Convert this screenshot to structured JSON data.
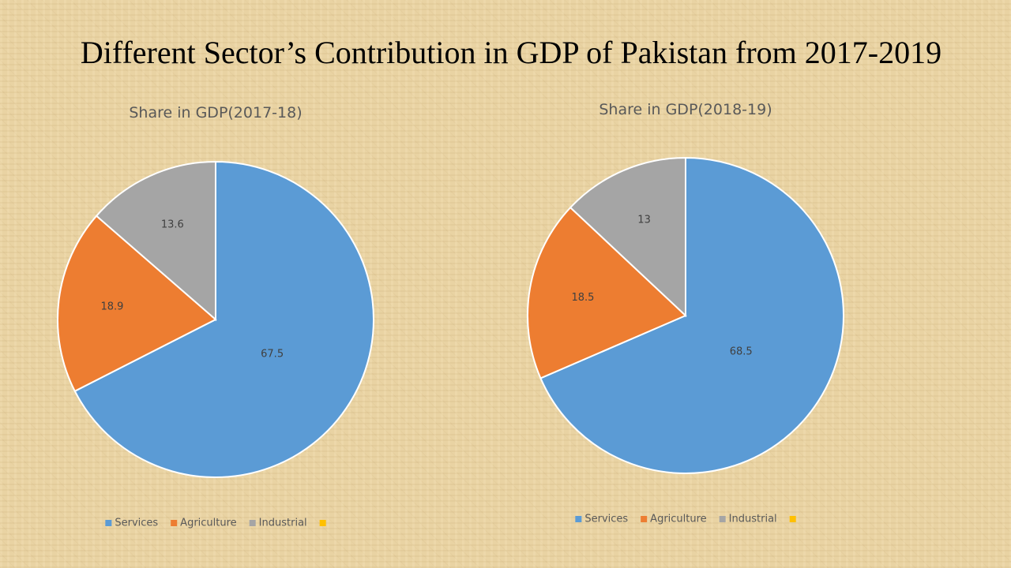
{
  "title": "Different Sector’s Contribution in GDP of Pakistan from 2017-2019",
  "chart_data": [
    {
      "type": "pie",
      "title": "Share in GDP(2017-18)",
      "categories": [
        "Services",
        "Agriculture",
        "Industrial",
        null
      ],
      "values": [
        67.5,
        18.9,
        13.6,
        null
      ],
      "colors": [
        "#5b9bd5",
        "#ed7d31",
        "#a5a5a5",
        "#ffc000"
      ],
      "legend": "bottom"
    },
    {
      "type": "pie",
      "title": "Share in GDP(2018-19)",
      "categories": [
        "Services",
        "Agriculture",
        "Industrial",
        null
      ],
      "values": [
        68.5,
        18.5,
        13,
        null
      ],
      "colors": [
        "#5b9bd5",
        "#ed7d31",
        "#a5a5a5",
        "#ffc000"
      ],
      "legend": "bottom"
    }
  ]
}
